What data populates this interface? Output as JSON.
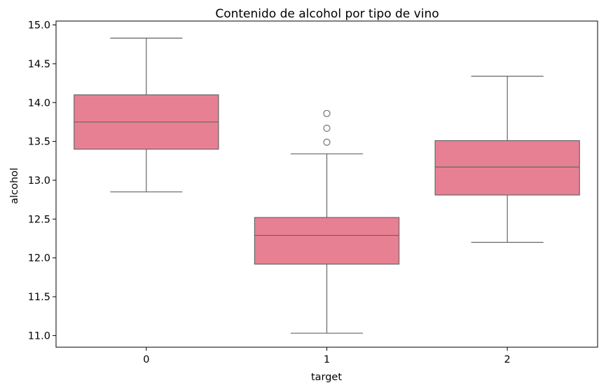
{
  "chart_data": {
    "type": "boxplot",
    "title": "Contenido de alcohol por tipo de vino",
    "xlabel": "target",
    "ylabel": "alcohol",
    "categories": [
      "0",
      "1",
      "2"
    ],
    "ylim": [
      10.85,
      15.05
    ],
    "yticks": [
      11.0,
      11.5,
      12.0,
      12.5,
      13.0,
      13.5,
      14.0,
      14.5,
      15.0
    ],
    "ytick_labels": [
      "11.0",
      "11.5",
      "12.0",
      "12.5",
      "13.0",
      "13.5",
      "14.0",
      "14.5",
      "15.0"
    ],
    "grid": false,
    "boxes": [
      {
        "category": "0",
        "whisker_low": 12.85,
        "q1": 13.4,
        "median": 13.75,
        "q3": 14.1,
        "whisker_high": 14.83,
        "outliers": []
      },
      {
        "category": "1",
        "whisker_low": 11.03,
        "q1": 11.92,
        "median": 12.29,
        "q3": 12.52,
        "whisker_high": 13.34,
        "outliers": [
          13.49,
          13.67,
          13.86
        ]
      },
      {
        "category": "2",
        "whisker_low": 12.2,
        "q1": 12.81,
        "median": 13.17,
        "q3": 13.51,
        "whisker_high": 14.34,
        "outliers": []
      }
    ],
    "colors": {
      "box_fill": "#E88093",
      "line": "#666666",
      "axis": "#000000"
    }
  }
}
